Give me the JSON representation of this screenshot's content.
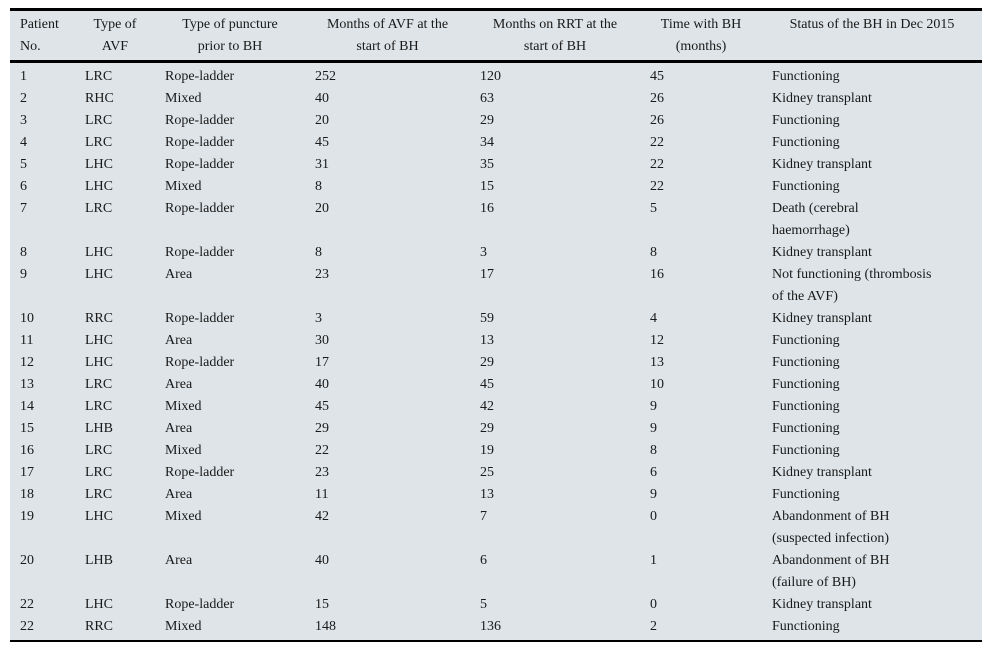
{
  "table": {
    "background_color": "#dee4e8",
    "rule_color": "#000000",
    "text_color": "#191919",
    "columns": [
      {
        "id": "patient_no",
        "align": "left",
        "lines": [
          "Patient",
          "No."
        ]
      },
      {
        "id": "avf_type",
        "align": "center",
        "lines": [
          "Type of",
          "AVF"
        ]
      },
      {
        "id": "puncture_type",
        "align": "center",
        "lines": [
          "Type of puncture",
          "prior to BH"
        ]
      },
      {
        "id": "months_avf",
        "align": "center",
        "lines": [
          "Months of AVF at the",
          "start of BH"
        ]
      },
      {
        "id": "months_rrt",
        "align": "center",
        "lines": [
          "Months on RRT at the",
          "start of BH"
        ]
      },
      {
        "id": "time_bh",
        "align": "center",
        "lines": [
          "Time with BH",
          "(months)"
        ]
      },
      {
        "id": "status",
        "align": "center",
        "lines": [
          "Status of the BH in Dec 2015"
        ]
      }
    ],
    "rows": [
      [
        "1",
        "LRC",
        "Rope-ladder",
        "252",
        "120",
        "45",
        "Functioning"
      ],
      [
        "2",
        "RHC",
        "Mixed",
        "40",
        "63",
        "26",
        "Kidney transplant"
      ],
      [
        "3",
        "LRC",
        "Rope-ladder",
        "20",
        "29",
        "26",
        "Functioning"
      ],
      [
        "4",
        "LRC",
        "Rope-ladder",
        "45",
        "34",
        "22",
        "Functioning"
      ],
      [
        "5",
        "LHC",
        "Rope-ladder",
        "31",
        "35",
        "22",
        "Kidney transplant"
      ],
      [
        "6",
        "LHC",
        "Mixed",
        "8",
        "15",
        "22",
        "Functioning"
      ],
      [
        "7",
        "LRC",
        "Rope-ladder",
        "20",
        "16",
        "5",
        "Death (cerebral\nhaemorrhage)"
      ],
      [
        "8",
        "LHC",
        "Rope-ladder",
        "8",
        "3",
        "8",
        "Kidney transplant"
      ],
      [
        "9",
        "LHC",
        "Area",
        "23",
        "17",
        "16",
        "Not functioning (thrombosis\nof the AVF)"
      ],
      [
        "10",
        "RRC",
        "Rope-ladder",
        "3",
        "59",
        "4",
        "Kidney transplant"
      ],
      [
        "11",
        "LHC",
        "Area",
        "30",
        "13",
        "12",
        "Functioning"
      ],
      [
        "12",
        "LHC",
        "Rope-ladder",
        "17",
        "29",
        "13",
        "Functioning"
      ],
      [
        "13",
        "LRC",
        "Area",
        "40",
        "45",
        "10",
        "Functioning"
      ],
      [
        "14",
        "LRC",
        "Mixed",
        "45",
        "42",
        "9",
        "Functioning"
      ],
      [
        "15",
        "LHB",
        "Area",
        "29",
        "29",
        "9",
        "Functioning"
      ],
      [
        "16",
        "LRC",
        "Mixed",
        "22",
        "19",
        "8",
        "Functioning"
      ],
      [
        "17",
        "LRC",
        "Rope-ladder",
        "23",
        "25",
        "6",
        "Kidney transplant"
      ],
      [
        "18",
        "LRC",
        "Area",
        "11",
        "13",
        "9",
        "Functioning"
      ],
      [
        "19",
        "LHC",
        "Mixed",
        "42",
        "7",
        "0",
        "Abandonment of BH\n(suspected infection)"
      ],
      [
        "20",
        "LHB",
        "Area",
        "40",
        "6",
        "1",
        "Abandonment of BH\n(failure of BH)"
      ],
      [
        "22",
        "LHC",
        "Rope-ladder",
        "15",
        "5",
        "0",
        "Kidney transplant"
      ],
      [
        "22",
        "RRC",
        "Mixed",
        "148",
        "136",
        "2",
        "Functioning"
      ]
    ]
  }
}
